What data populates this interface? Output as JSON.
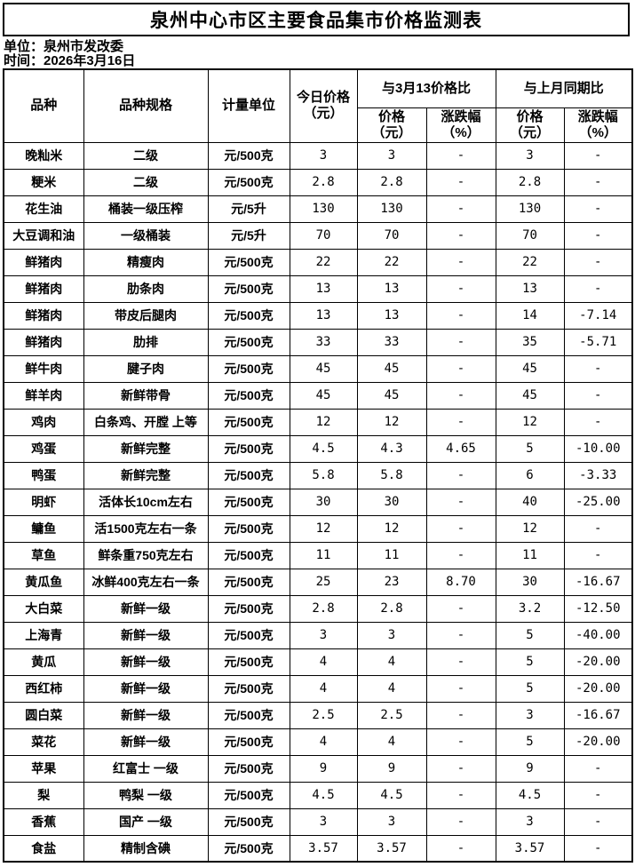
{
  "page": {
    "title": "泉州中心市区主要食品集市价格监测表",
    "unit_line": "单位：泉州市发改委",
    "date_line": "时间：2026年3月16日"
  },
  "colors": {
    "background": "#ffffff",
    "text": "#000000",
    "border": "#000000"
  },
  "table": {
    "header": {
      "variety": "品种",
      "spec": "品种规格",
      "unit": "计量单位",
      "today_price": "今日价格\n（元）",
      "vs_mar13_group": "与3月13价格比",
      "vs_last_month_group": "与上月同期比",
      "sub_price": "价格\n（元）",
      "sub_change": "涨跌幅\n（%）"
    },
    "columns": [
      "variety",
      "spec",
      "unit",
      "today_price",
      "price_vs_mar13",
      "change_vs_mar13",
      "price_vs_last_month",
      "change_vs_last_month"
    ],
    "rows": [
      [
        "晚籼米",
        "二级",
        "元/500克",
        "3",
        "3",
        "-",
        "3",
        "-"
      ],
      [
        "粳米",
        "二级",
        "元/500克",
        "2.8",
        "2.8",
        "-",
        "2.8",
        "-"
      ],
      [
        "花生油",
        "桶装一级压榨",
        "元/5升",
        "130",
        "130",
        "-",
        "130",
        "-"
      ],
      [
        "大豆调和油",
        "一级桶装",
        "元/5升",
        "70",
        "70",
        "-",
        "70",
        "-"
      ],
      [
        "鲜猪肉",
        "精瘦肉",
        "元/500克",
        "22",
        "22",
        "-",
        "22",
        "-"
      ],
      [
        "鲜猪肉",
        "肋条肉",
        "元/500克",
        "13",
        "13",
        "-",
        "13",
        "-"
      ],
      [
        "鲜猪肉",
        "带皮后腿肉",
        "元/500克",
        "13",
        "13",
        "-",
        "14",
        "-7.14"
      ],
      [
        "鲜猪肉",
        "肋排",
        "元/500克",
        "33",
        "33",
        "-",
        "35",
        "-5.71"
      ],
      [
        "鲜牛肉",
        "腱子肉",
        "元/500克",
        "45",
        "45",
        "-",
        "45",
        "-"
      ],
      [
        "鲜羊肉",
        "新鲜带骨",
        "元/500克",
        "45",
        "45",
        "-",
        "45",
        "-"
      ],
      [
        "鸡肉",
        "白条鸡、开膛 上等",
        "元/500克",
        "12",
        "12",
        "-",
        "12",
        "-"
      ],
      [
        "鸡蛋",
        "新鲜完整",
        "元/500克",
        "4.5",
        "4.3",
        "4.65",
        "5",
        "-10.00"
      ],
      [
        "鸭蛋",
        "新鲜完整",
        "元/500克",
        "5.8",
        "5.8",
        "-",
        "6",
        "-3.33"
      ],
      [
        "明虾",
        "活体长10cm左右",
        "元/500克",
        "30",
        "30",
        "-",
        "40",
        "-25.00"
      ],
      [
        "鳙鱼",
        "活1500克左右一条",
        "元/500克",
        "12",
        "12",
        "-",
        "12",
        "-"
      ],
      [
        "草鱼",
        "鲜条重750克左右",
        "元/500克",
        "11",
        "11",
        "-",
        "11",
        "-"
      ],
      [
        "黄瓜鱼",
        "冰鲜400克左右一条",
        "元/500克",
        "25",
        "23",
        "8.70",
        "30",
        "-16.67"
      ],
      [
        "大白菜",
        "新鲜一级",
        "元/500克",
        "2.8",
        "2.8",
        "-",
        "3.2",
        "-12.50"
      ],
      [
        "上海青",
        "新鲜一级",
        "元/500克",
        "3",
        "3",
        "-",
        "5",
        "-40.00"
      ],
      [
        "黄瓜",
        "新鲜一级",
        "元/500克",
        "4",
        "4",
        "-",
        "5",
        "-20.00"
      ],
      [
        "西红柿",
        "新鲜一级",
        "元/500克",
        "4",
        "4",
        "-",
        "5",
        "-20.00"
      ],
      [
        "圆白菜",
        "新鲜一级",
        "元/500克",
        "2.5",
        "2.5",
        "-",
        "3",
        "-16.67"
      ],
      [
        "菜花",
        "新鲜一级",
        "元/500克",
        "4",
        "4",
        "-",
        "5",
        "-20.00"
      ],
      [
        "苹果",
        "红富士 一级",
        "元/500克",
        "9",
        "9",
        "-",
        "9",
        "-"
      ],
      [
        "梨",
        "鸭梨 一级",
        "元/500克",
        "4.5",
        "4.5",
        "-",
        "4.5",
        "-"
      ],
      [
        "香蕉",
        "国产 一级",
        "元/500克",
        "3",
        "3",
        "-",
        "3",
        "-"
      ],
      [
        "食盐",
        "精制含碘",
        "元/500克",
        "3.57",
        "3.57",
        "-",
        "3.57",
        "-"
      ]
    ]
  }
}
